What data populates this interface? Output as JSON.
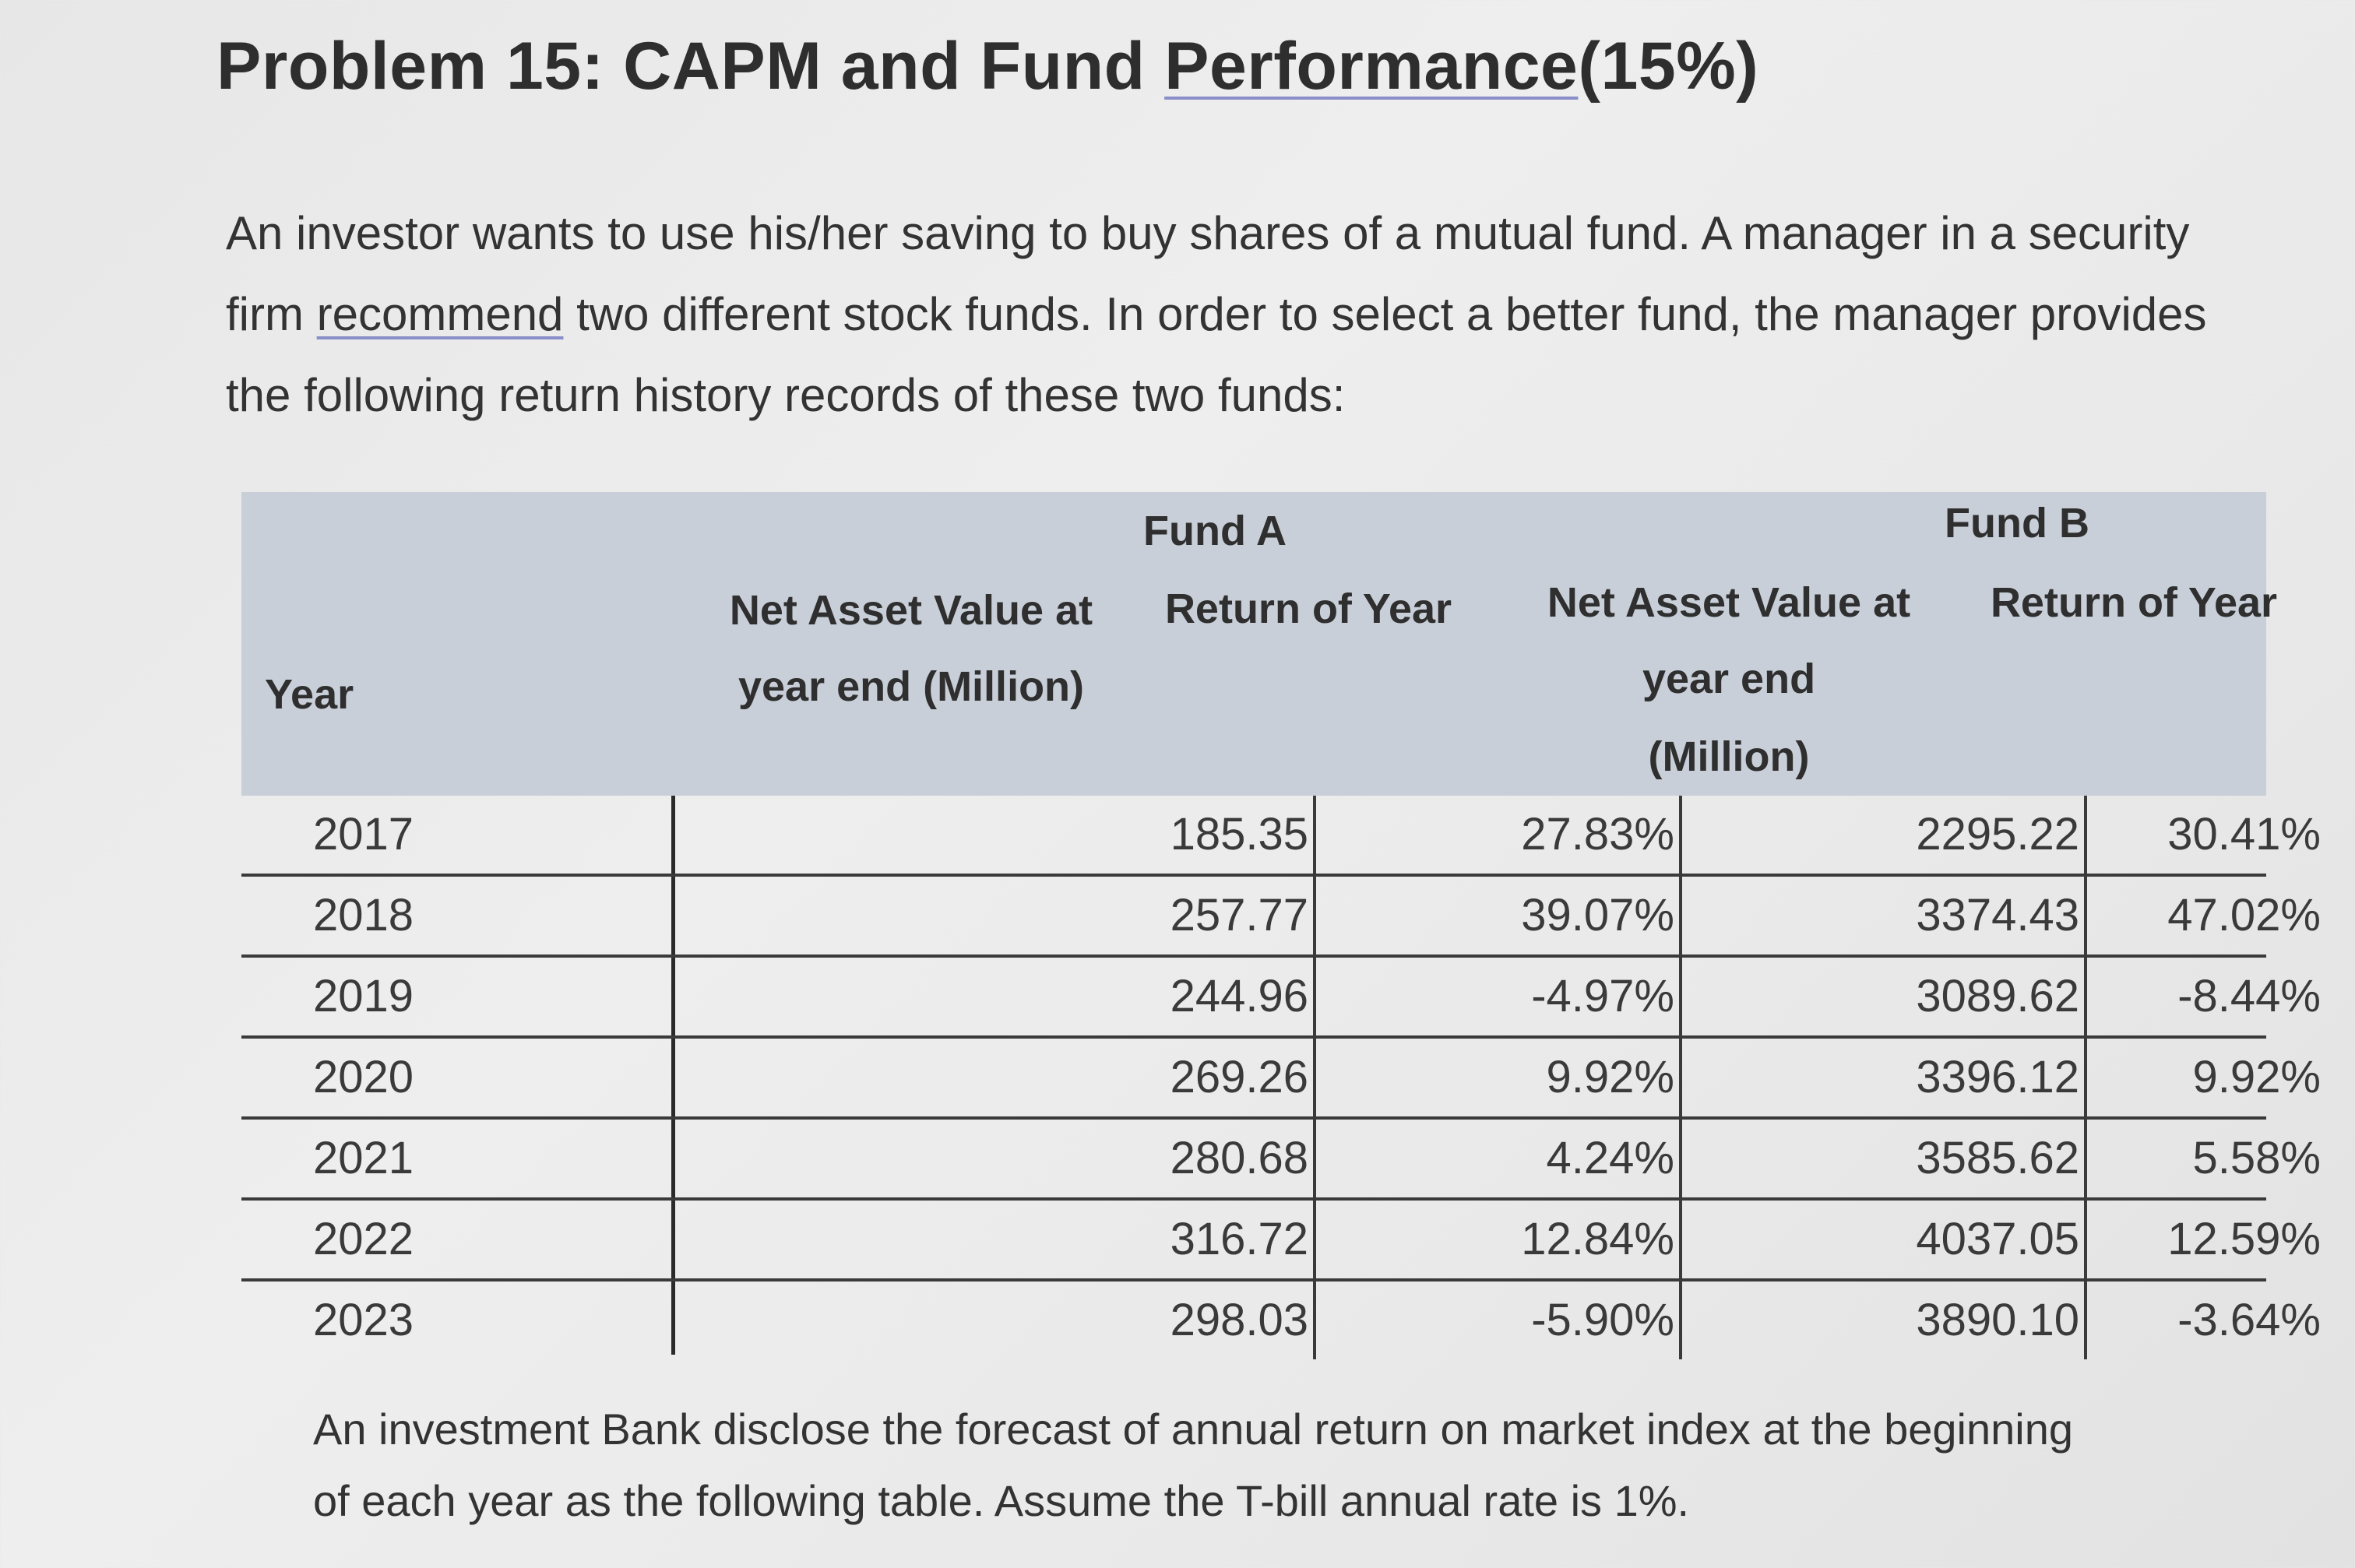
{
  "title": {
    "prefix": "Problem 15: CAPM and Fund ",
    "underlined": "Performance",
    "suffix": "(15%)"
  },
  "intro": {
    "part1": "An investor wants to use his/her saving to buy shares of a mutual fund. A manager in a security firm ",
    "underlined": "recommend",
    "part2": " two different stock funds. In order to select a better fund, the manager provides the following return history records of these two funds:"
  },
  "table": {
    "headers": {
      "year": "Year",
      "fund_a": "Fund A",
      "fund_b": "Fund B",
      "fund_a_nav_line1": "Net Asset Value at",
      "fund_a_nav_line2": "year end (Million)",
      "fund_a_return": "Return of Year",
      "fund_b_nav_line1": "Net Asset Value at",
      "fund_b_nav_line2": "year end",
      "fund_b_nav_line3": "(Million)",
      "fund_b_return": "Return of Year"
    },
    "rows": [
      {
        "year": "2017",
        "a_nav": "185.35",
        "a_ret": "27.83%",
        "b_nav": "2295.22",
        "b_ret": "30.41%"
      },
      {
        "year": "2018",
        "a_nav": "257.77",
        "a_ret": "39.07%",
        "b_nav": "3374.43",
        "b_ret": "47.02%"
      },
      {
        "year": "2019",
        "a_nav": "244.96",
        "a_ret": "-4.97%",
        "b_nav": "3089.62",
        "b_ret": "-8.44%"
      },
      {
        "year": "2020",
        "a_nav": "269.26",
        "a_ret": "9.92%",
        "b_nav": "3396.12",
        "b_ret": "9.92%"
      },
      {
        "year": "2021",
        "a_nav": "280.68",
        "a_ret": "4.24%",
        "b_nav": "3585.62",
        "b_ret": "5.58%"
      },
      {
        "year": "2022",
        "a_nav": "316.72",
        "a_ret": "12.84%",
        "b_nav": "4037.05",
        "b_ret": "12.59%"
      },
      {
        "year": "2023",
        "a_nav": "298.03",
        "a_ret": "-5.90%",
        "b_nav": "3890.10",
        "b_ret": "-3.64%"
      }
    ]
  },
  "footer": {
    "text": "An investment Bank disclose the forecast of annual return on market index at the beginning of each year as the following table. Assume the T-bill annual rate is 1%."
  }
}
